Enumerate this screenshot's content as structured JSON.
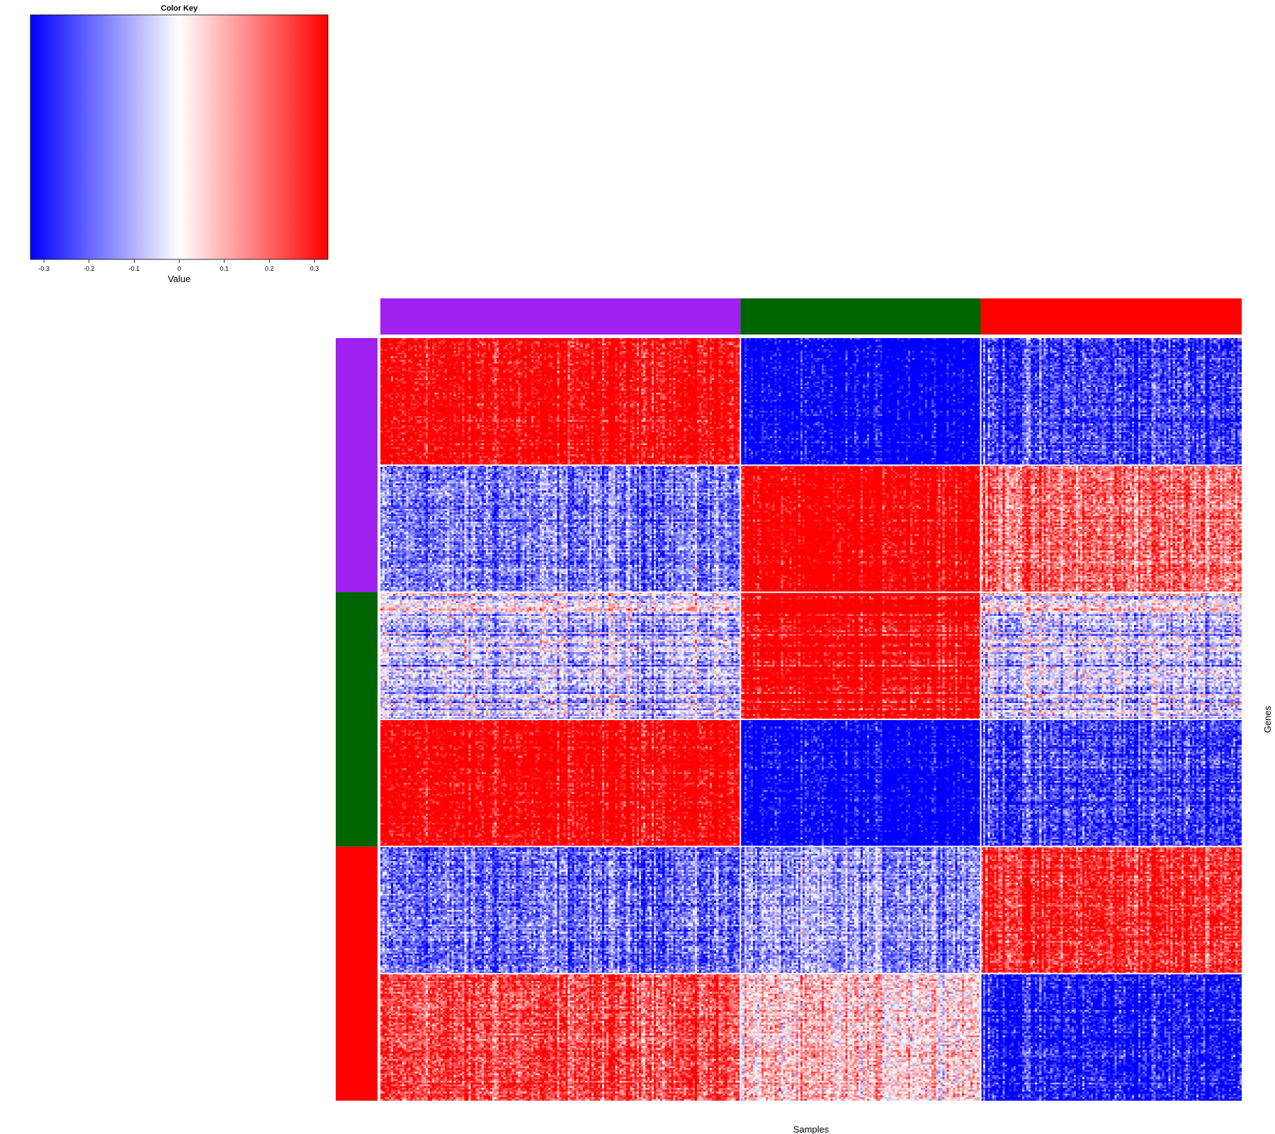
{
  "chart_data": {
    "type": "heatmap",
    "xlabel": "Samples",
    "ylabel": "Genes",
    "color_key": {
      "title": "Color Key",
      "xlabel": "Value",
      "min": -0.33,
      "max": 0.33,
      "ticks": [
        "-0.3",
        "-0.2",
        "-0.1",
        "0",
        "0.1",
        "0.2",
        "0.3"
      ],
      "tick_values": [
        -0.3,
        -0.2,
        -0.1,
        0,
        0.1,
        0.2,
        0.3
      ],
      "colors": [
        "#0000ff",
        "#ffffff",
        "#ff0000"
      ]
    },
    "column_groups": [
      {
        "name": "purple",
        "color": "#a020f0",
        "fraction": 0.418
      },
      {
        "name": "green",
        "color": "#006400",
        "fraction": 0.279
      },
      {
        "name": "red",
        "color": "#ff0000",
        "fraction": 0.303
      }
    ],
    "row_groups": [
      {
        "name": "purple",
        "color": "#a020f0",
        "fraction": 0.333
      },
      {
        "name": "green",
        "color": "#006400",
        "fraction": 0.334
      },
      {
        "name": "red",
        "color": "#ff0000",
        "fraction": 0.333
      }
    ],
    "row_blocks": [
      {
        "row_group": "purple",
        "pattern": "high",
        "cluster_values": [
          0.25,
          -0.27,
          -0.18
        ]
      },
      {
        "row_group": "purple",
        "pattern": "low",
        "cluster_values": [
          -0.12,
          0.28,
          0.14
        ]
      },
      {
        "row_group": "green",
        "pattern": "mixed",
        "cluster_values": [
          -0.05,
          0.27,
          -0.04
        ]
      },
      {
        "row_group": "green",
        "pattern": "high",
        "cluster_values": [
          0.26,
          -0.27,
          -0.18
        ]
      },
      {
        "row_group": "red",
        "pattern": "low",
        "cluster_values": [
          -0.14,
          -0.1,
          0.2
        ]
      },
      {
        "row_group": "red",
        "pattern": "high",
        "cluster_values": [
          0.17,
          0.05,
          -0.22
        ]
      }
    ]
  }
}
